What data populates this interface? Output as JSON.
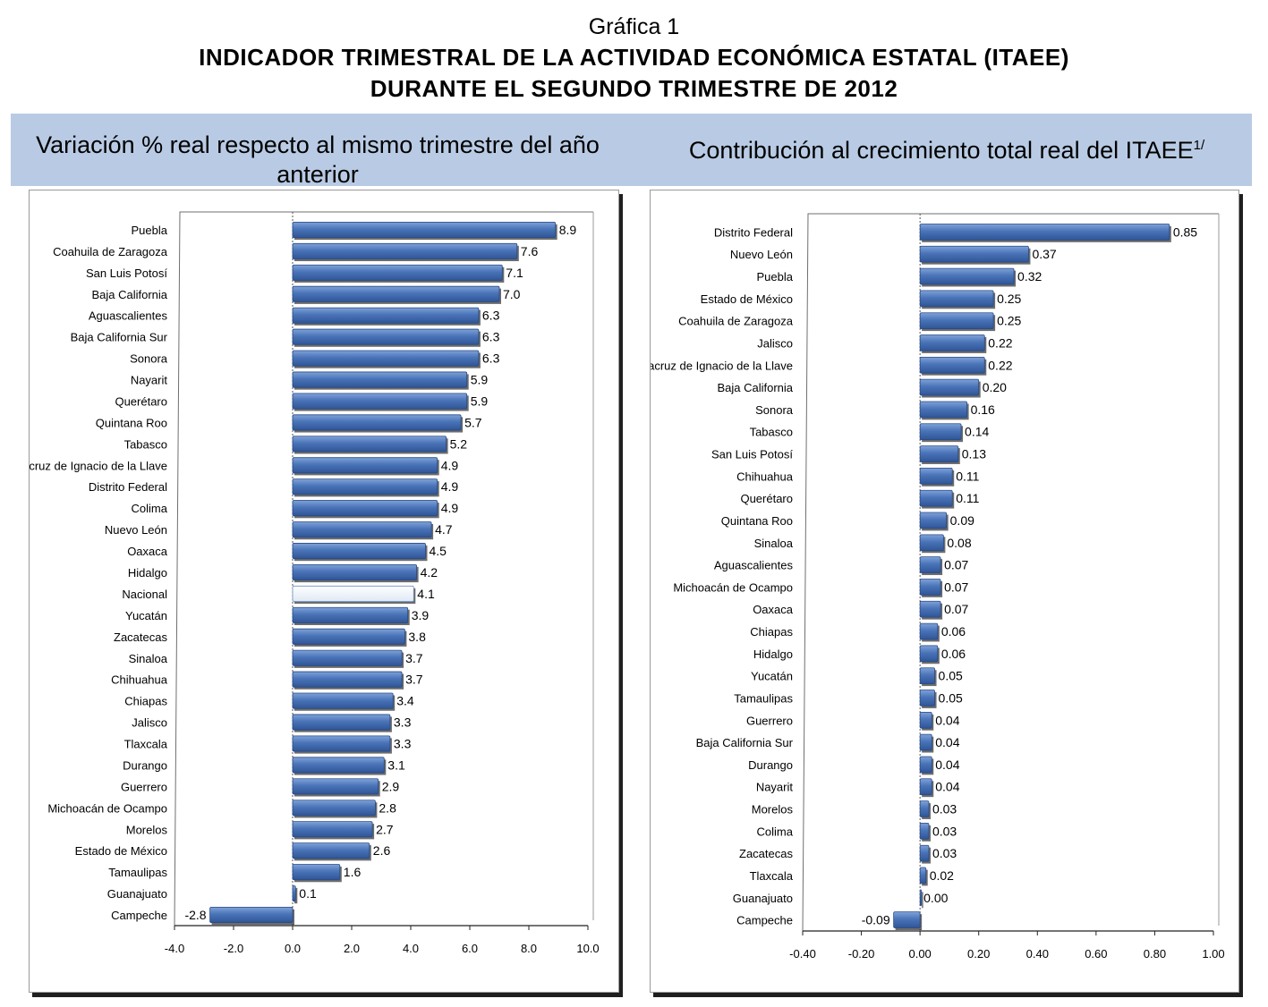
{
  "figure": {
    "label": "Gráfica 1",
    "title_line1": "INDICADOR TRIMESTRAL DE LA ACTIVIDAD ECONÓMICA ESTATAL (ITAEE)",
    "title_line2": "DURANTE EL SEGUNDO TRIMESTRE DE 2012"
  },
  "headers": {
    "left": "Variación % real respecto al mismo trimestre del año anterior",
    "right": "Contribución al crecimiento total real del ITAEE",
    "right_note": "1/"
  },
  "colors": {
    "bar": "#4a74b8",
    "bar_highlight": "#dfe9f5",
    "band": "#b9cbe4"
  },
  "chart_data": [
    {
      "type": "bar",
      "orientation": "horizontal",
      "title": "Variación % real respecto al mismo trimestre del año anterior",
      "categories": [
        "Puebla",
        "Coahuila de Zaragoza",
        "San Luis Potosí",
        "Baja California",
        "Aguascalientes",
        "Baja California Sur",
        "Sonora",
        "Nayarit",
        "Querétaro",
        "Quintana Roo",
        "Tabasco",
        "Veracruz de Ignacio de la Llave",
        "Distrito Federal",
        "Colima",
        "Nuevo León",
        "Oaxaca",
        "Hidalgo",
        "Nacional",
        "Yucatán",
        "Zacatecas",
        "Sinaloa",
        "Chihuahua",
        "Chiapas",
        "Jalisco",
        "Tlaxcala",
        "Durango",
        "Guerrero",
        "Michoacán de Ocampo",
        "Morelos",
        "Estado de México",
        "Tamaulipas",
        "Guanajuato",
        "Campeche"
      ],
      "values": [
        8.9,
        7.6,
        7.1,
        7.0,
        6.3,
        6.3,
        6.3,
        5.9,
        5.9,
        5.7,
        5.2,
        4.9,
        4.9,
        4.9,
        4.7,
        4.5,
        4.2,
        4.1,
        3.9,
        3.8,
        3.7,
        3.7,
        3.4,
        3.3,
        3.3,
        3.1,
        2.9,
        2.8,
        2.7,
        2.6,
        1.6,
        0.1,
        -2.8
      ],
      "value_labels": [
        "8.9",
        "7.6",
        "7.1",
        "7.0",
        "6.3",
        "6.3",
        "6.3",
        "5.9",
        "5.9",
        "5.7",
        "5.2",
        "4.9",
        "4.9",
        "4.9",
        "4.7",
        "4.5",
        "4.2",
        "4.1",
        "3.9",
        "3.8",
        "3.7",
        "3.7",
        "3.4",
        "3.3",
        "3.3",
        "3.1",
        "2.9",
        "2.8",
        "2.7",
        "2.6",
        "1.6",
        "0.1",
        "-2.8"
      ],
      "highlight": "Nacional",
      "xlim": [
        -4.0,
        10.0
      ],
      "xticks": [
        "-4.0",
        "-2.0",
        "0.0",
        "2.0",
        "4.0",
        "6.0",
        "8.0",
        "10.0"
      ],
      "xlabel": "",
      "ylabel": ""
    },
    {
      "type": "bar",
      "orientation": "horizontal",
      "title": "Contribución al crecimiento total real del ITAEE",
      "categories": [
        "Distrito Federal",
        "Nuevo León",
        "Puebla",
        "Estado de México",
        "Coahuila de Zaragoza",
        "Jalisco",
        "Veracruz de Ignacio de la Llave",
        "Baja California",
        "Sonora",
        "Tabasco",
        "San Luis Potosí",
        "Chihuahua",
        "Querétaro",
        "Quintana Roo",
        "Sinaloa",
        "Aguascalientes",
        "Michoacán de Ocampo",
        "Oaxaca",
        "Chiapas",
        "Hidalgo",
        "Yucatán",
        "Tamaulipas",
        "Guerrero",
        "Baja California Sur",
        "Durango",
        "Nayarit",
        "Morelos",
        "Colima",
        "Zacatecas",
        "Tlaxcala",
        "Guanajuato",
        "Campeche"
      ],
      "values": [
        0.85,
        0.37,
        0.32,
        0.25,
        0.25,
        0.22,
        0.22,
        0.2,
        0.16,
        0.14,
        0.13,
        0.11,
        0.11,
        0.09,
        0.08,
        0.07,
        0.07,
        0.07,
        0.06,
        0.06,
        0.05,
        0.05,
        0.04,
        0.04,
        0.04,
        0.04,
        0.03,
        0.03,
        0.03,
        0.02,
        0.0,
        -0.09
      ],
      "value_labels": [
        "0.85",
        "0.37",
        "0.32",
        "0.25",
        "0.25",
        "0.22",
        "0.22",
        "0.20",
        "0.16",
        "0.14",
        "0.13",
        "0.11",
        "0.11",
        "0.09",
        "0.08",
        "0.07",
        "0.07",
        "0.07",
        "0.06",
        "0.06",
        "0.05",
        "0.05",
        "0.04",
        "0.04",
        "0.04",
        "0.04",
        "0.03",
        "0.03",
        "0.03",
        "0.02",
        "0.00",
        "-0.09"
      ],
      "highlight": null,
      "xlim": [
        -0.4,
        1.0
      ],
      "xticks": [
        "-0.40",
        "-0.20",
        "0.00",
        "0.20",
        "0.40",
        "0.60",
        "0.80",
        "1.00"
      ],
      "xlabel": "",
      "ylabel": ""
    }
  ]
}
